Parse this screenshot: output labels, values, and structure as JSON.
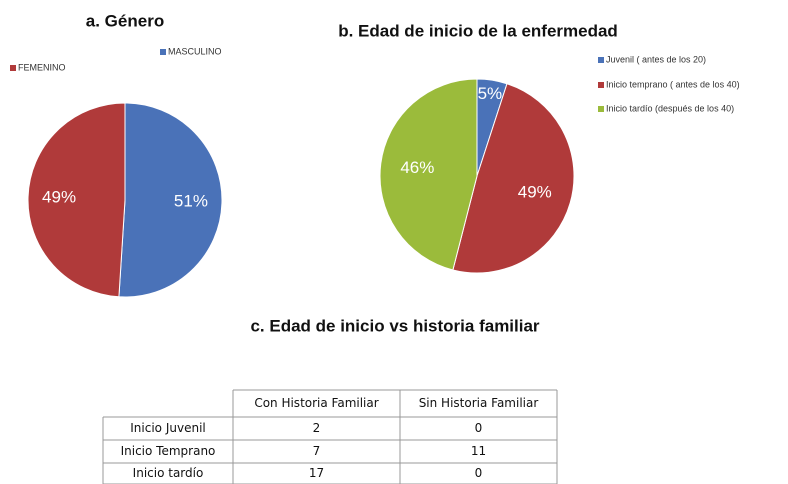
{
  "chart_data": [
    {
      "type": "pie",
      "title": "a. Género",
      "categories": [
        "MASCULINO",
        "FEMENINO"
      ],
      "values": [
        51,
        49
      ],
      "value_labels": [
        "51%",
        "49%"
      ],
      "colors": [
        "#4a72b8",
        "#b03a3a"
      ]
    },
    {
      "type": "pie",
      "title": "b. Edad de inicio de la enfermedad",
      "categories": [
        "Juvenil ( antes de los 20)",
        "Inicio temprano ( antes de los 40)",
        "Inicio tardío (después de los 40)"
      ],
      "values": [
        5,
        49,
        46
      ],
      "value_labels": [
        "5%",
        "49%",
        "46%"
      ],
      "colors": [
        "#4a72b8",
        "#b03a3a",
        "#9bbb3b"
      ]
    }
  ],
  "table": {
    "title": "c. Edad de inicio vs historia familiar",
    "columns": [
      "Con Historia Familiar",
      "Sin Historia Familiar"
    ],
    "rows": [
      {
        "label": "Inicio Juvenil",
        "values": [
          2,
          0
        ]
      },
      {
        "label": "Inicio Temprano",
        "values": [
          7,
          11
        ]
      },
      {
        "label": "Inicio tardío",
        "values": [
          17,
          0
        ]
      }
    ]
  }
}
